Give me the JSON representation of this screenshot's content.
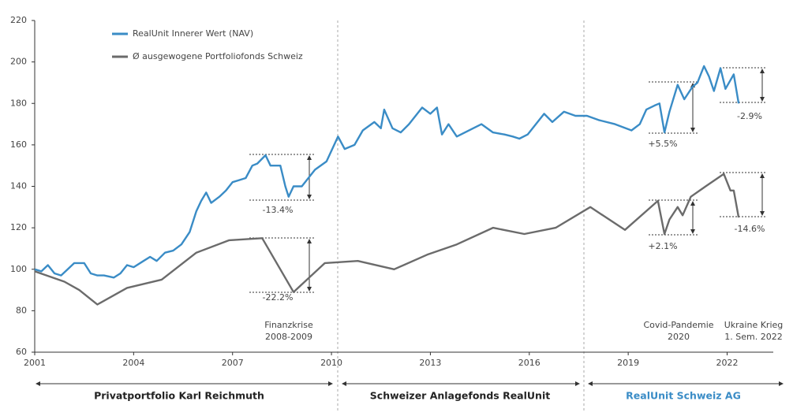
{
  "chart_data": {
    "type": "line",
    "xlim": [
      2001,
      2023.4
    ],
    "xticks": [
      2001,
      2004,
      2007,
      2010,
      2013,
      2016,
      2019,
      2022
    ],
    "ylim": [
      60,
      220
    ],
    "yticks": [
      60,
      80,
      100,
      120,
      140,
      160,
      180,
      200,
      220
    ],
    "grid": false,
    "legend": "top-left",
    "series": [
      {
        "name": "RealUnit Innerer Wert (NAV)",
        "color": "#3a8cc6",
        "x": [
          2001.0,
          2001.2,
          2001.4,
          2001.6,
          2001.8,
          2002.0,
          2002.2,
          2002.5,
          2002.7,
          2002.9,
          2003.1,
          2003.4,
          2003.6,
          2003.8,
          2004.0,
          2004.3,
          2004.5,
          2004.7,
          2004.95,
          2005.2,
          2005.45,
          2005.7,
          2005.9,
          2006.05,
          2006.2,
          2006.35,
          2006.6,
          2006.8,
          2007.0,
          2007.2,
          2007.4,
          2007.6,
          2007.75,
          2008.0,
          2008.15,
          2008.45,
          2008.6,
          2008.7,
          2008.85,
          2009.1,
          2009.5,
          2009.85,
          2010.2,
          2010.4,
          2010.7,
          2010.95,
          2011.3,
          2011.5,
          2011.6,
          2011.85,
          2012.1,
          2012.35,
          2012.75,
          2013.0,
          2013.2,
          2013.35,
          2013.55,
          2013.8,
          2014.3,
          2014.55,
          2014.9,
          2015.25,
          2015.5,
          2015.7,
          2015.95,
          2016.2,
          2016.45,
          2016.7,
          2017.05,
          2017.4,
          2017.75,
          2018.1,
          2018.6,
          2019.1,
          2019.35,
          2019.55,
          2019.8,
          2019.95,
          2020.1,
          2020.25,
          2020.5,
          2020.7,
          2020.95,
          2021.1,
          2021.3,
          2021.45,
          2021.6,
          2021.8,
          2021.95,
          2022.2,
          2022.35
        ],
        "values": [
          100,
          99,
          102,
          98,
          97,
          100,
          103,
          103,
          98,
          97,
          97,
          96,
          98,
          102,
          101,
          104,
          106,
          104,
          108,
          109,
          112,
          118,
          128,
          133,
          137,
          132,
          135,
          138,
          142,
          143,
          144,
          150,
          151,
          155,
          150,
          150,
          140,
          135,
          140,
          140,
          148,
          152,
          164,
          158,
          160,
          167,
          171,
          168,
          177,
          168,
          166,
          170,
          178,
          175,
          178,
          165,
          170,
          164,
          168,
          170,
          166,
          165,
          164,
          163,
          165,
          170,
          175,
          171,
          176,
          174,
          174,
          172,
          170,
          167,
          170,
          177,
          179,
          180,
          166,
          176,
          189,
          182,
          188,
          190,
          198,
          193,
          186,
          197,
          187,
          194,
          180
        ]
      },
      {
        "name": "Ø ausgewogene Portfoliofonds Schweiz",
        "color": "#6b6b6b",
        "x": [
          2001.0,
          2001.9,
          2002.35,
          2002.9,
          2003.8,
          2004.85,
          2005.9,
          2006.9,
          2007.9,
          2008.85,
          2009.8,
          2010.8,
          2011.9,
          2012.9,
          2013.8,
          2014.9,
          2015.85,
          2016.8,
          2017.85,
          2018.9,
          2019.9,
          2020.1,
          2020.25,
          2020.5,
          2020.65,
          2020.9,
          2021.35,
          2021.9,
          2022.1,
          2022.2,
          2022.35
        ],
        "values": [
          99,
          94,
          90,
          83,
          91,
          95,
          108,
          114,
          115,
          89,
          103,
          104,
          100,
          107,
          112,
          120,
          117,
          120,
          130,
          119,
          133,
          117,
          124,
          130,
          126,
          135,
          140,
          146,
          138,
          138,
          125
        ]
      }
    ],
    "annotations": [
      {
        "text": "-13.4%",
        "color": "#c0392b"
      },
      {
        "text": "-22.2%",
        "color": "#c0392b"
      },
      {
        "text": "+5.5%",
        "color": "#3aa047"
      },
      {
        "text": "+2.1%",
        "color": "#3aa047"
      },
      {
        "text": "-2.9%",
        "color": "#c0392b"
      },
      {
        "text": "-14.6%",
        "color": "#c0392b"
      }
    ],
    "events": [
      {
        "lines": [
          "Finanzkrise",
          "2008-2009"
        ]
      },
      {
        "lines": [
          "Covid-Pandemie",
          "2020"
        ]
      },
      {
        "lines": [
          "Ukraine Krieg",
          "1. Sem. 2022"
        ]
      }
    ],
    "sections": [
      {
        "text": "Privatportfolio Karl Reichmuth",
        "color": "#222222"
      },
      {
        "text": "Schweizer Anlagefonds RealUnit",
        "color": "#222222"
      },
      {
        "text": "RealUnit Schweiz AG",
        "color": "#3a8cc6"
      }
    ]
  }
}
